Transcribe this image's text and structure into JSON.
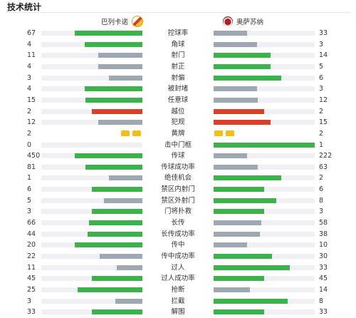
{
  "page": {
    "title": "技术统计"
  },
  "teams": {
    "home": "巴列卡诺",
    "away": "奥萨苏纳"
  },
  "colors": {
    "win": "#3cb34a",
    "lose": "#9ea8b3",
    "alert": "#d9402a",
    "card": "#f6bd16"
  },
  "stats": [
    {
      "label": "控球率",
      "home": "67",
      "away": "33",
      "home_fill": 0.67,
      "away_fill": 0.33,
      "home_color": "win",
      "away_color": "lose"
    },
    {
      "label": "角球",
      "home": "4",
      "away": "3",
      "home_fill": 0.57,
      "away_fill": 0.43,
      "home_color": "win",
      "away_color": "lose"
    },
    {
      "label": "射门",
      "home": "11",
      "away": "14",
      "home_fill": 0.44,
      "away_fill": 0.56,
      "home_color": "lose",
      "away_color": "win"
    },
    {
      "label": "射正",
      "home": "4",
      "away": "5",
      "home_fill": 0.44,
      "away_fill": 0.56,
      "home_color": "lose",
      "away_color": "win"
    },
    {
      "label": "射偏",
      "home": "3",
      "away": "6",
      "home_fill": 0.33,
      "away_fill": 0.67,
      "home_color": "lose",
      "away_color": "win"
    },
    {
      "label": "被封堵",
      "home": "4",
      "away": "3",
      "home_fill": 0.57,
      "away_fill": 0.43,
      "home_color": "win",
      "away_color": "lose"
    },
    {
      "label": "任意球",
      "home": "15",
      "away": "12",
      "home_fill": 0.56,
      "away_fill": 0.44,
      "home_color": "win",
      "away_color": "lose"
    },
    {
      "label": "越位",
      "home": "2",
      "away": "2",
      "home_fill": 0.5,
      "away_fill": 0.5,
      "home_color": "alert",
      "away_color": "alert"
    },
    {
      "label": "犯规",
      "home": "12",
      "away": "15",
      "home_fill": 0.44,
      "away_fill": 0.56,
      "home_color": "lose",
      "away_color": "alert"
    },
    {
      "label": "黄牌",
      "home": "2",
      "away": "2",
      "cards": true,
      "home_cards": 2,
      "away_cards": 2
    },
    {
      "label": "击中门框",
      "home": "0",
      "away": "1",
      "home_fill": 0.0,
      "away_fill": 1.0,
      "home_color": "lose",
      "away_color": "win"
    },
    {
      "label": "传球",
      "home": "450",
      "away": "222",
      "home_fill": 0.67,
      "away_fill": 0.33,
      "home_color": "win",
      "away_color": "lose"
    },
    {
      "label": "传球成功率",
      "home": "81",
      "away": "63",
      "home_fill": 0.56,
      "away_fill": 0.44,
      "home_color": "win",
      "away_color": "lose"
    },
    {
      "label": "绝佳机会",
      "home": "1",
      "away": "2",
      "home_fill": 0.33,
      "away_fill": 0.67,
      "home_color": "lose",
      "away_color": "win"
    },
    {
      "label": "禁区内射门",
      "home": "6",
      "away": "6",
      "home_fill": 0.5,
      "away_fill": 0.5,
      "home_color": "win",
      "away_color": "win"
    },
    {
      "label": "禁区外射门",
      "home": "5",
      "away": "8",
      "home_fill": 0.38,
      "away_fill": 0.62,
      "home_color": "lose",
      "away_color": "win"
    },
    {
      "label": "门将扑救",
      "home": "3",
      "away": "3",
      "home_fill": 0.5,
      "away_fill": 0.5,
      "home_color": "win",
      "away_color": "win"
    },
    {
      "label": "长传",
      "home": "66",
      "away": "58",
      "home_fill": 0.53,
      "away_fill": 0.47,
      "home_color": "win",
      "away_color": "lose"
    },
    {
      "label": "长传成功率",
      "home": "44",
      "away": "38",
      "home_fill": 0.54,
      "away_fill": 0.46,
      "home_color": "win",
      "away_color": "lose"
    },
    {
      "label": "传中",
      "home": "20",
      "away": "10",
      "home_fill": 0.67,
      "away_fill": 0.33,
      "home_color": "win",
      "away_color": "lose"
    },
    {
      "label": "传中成功率",
      "home": "22",
      "away": "30",
      "home_fill": 0.42,
      "away_fill": 0.58,
      "home_color": "lose",
      "away_color": "win"
    },
    {
      "label": "过人",
      "home": "11",
      "away": "33",
      "home_fill": 0.25,
      "away_fill": 0.75,
      "home_color": "lose",
      "away_color": "win"
    },
    {
      "label": "过人成功率",
      "home": "45",
      "away": "45",
      "home_fill": 0.5,
      "away_fill": 0.5,
      "home_color": "win",
      "away_color": "win"
    },
    {
      "label": "抢断",
      "home": "25",
      "away": "14",
      "home_fill": 0.64,
      "away_fill": 0.36,
      "home_color": "win",
      "away_color": "lose"
    },
    {
      "label": "拦截",
      "home": "3",
      "away": "8",
      "home_fill": 0.27,
      "away_fill": 0.73,
      "home_color": "lose",
      "away_color": "win"
    },
    {
      "label": "解围",
      "home": "33",
      "away": "33",
      "home_fill": 0.5,
      "away_fill": 0.5,
      "home_color": "win",
      "away_color": "win"
    }
  ]
}
